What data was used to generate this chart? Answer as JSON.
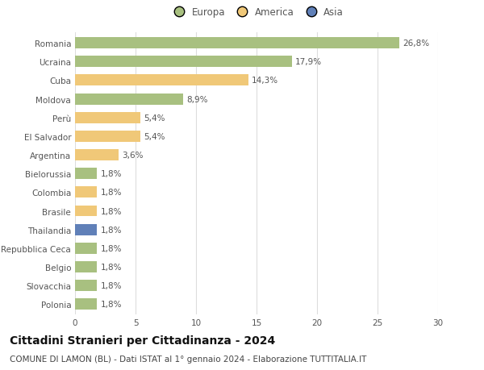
{
  "title": "Cittadini Stranieri per Cittadinanza - 2024",
  "subtitle": "COMUNE DI LAMON (BL) - Dati ISTAT al 1° gennaio 2024 - Elaborazione TUTTITALIA.IT",
  "legend_labels": [
    "Europa",
    "America",
    "Asia"
  ],
  "legend_colors": [
    "#a8c080",
    "#f0c878",
    "#6080b8"
  ],
  "categories": [
    "Romania",
    "Ucraina",
    "Cuba",
    "Moldova",
    "Perù",
    "El Salvador",
    "Argentina",
    "Bielorussia",
    "Colombia",
    "Brasile",
    "Thailandia",
    "Repubblica Ceca",
    "Belgio",
    "Slovacchia",
    "Polonia"
  ],
  "values": [
    26.8,
    17.9,
    14.3,
    8.9,
    5.4,
    5.4,
    3.6,
    1.8,
    1.8,
    1.8,
    1.8,
    1.8,
    1.8,
    1.8,
    1.8
  ],
  "bar_colors": [
    "#a8c080",
    "#a8c080",
    "#f0c878",
    "#a8c080",
    "#f0c878",
    "#f0c878",
    "#f0c878",
    "#a8c080",
    "#f0c878",
    "#f0c878",
    "#6080b8",
    "#a8c080",
    "#a8c080",
    "#a8c080",
    "#a8c080"
  ],
  "labels": [
    "26,8%",
    "17,9%",
    "14,3%",
    "8,9%",
    "5,4%",
    "5,4%",
    "3,6%",
    "1,8%",
    "1,8%",
    "1,8%",
    "1,8%",
    "1,8%",
    "1,8%",
    "1,8%",
    "1,8%"
  ],
  "xlim": [
    0,
    30
  ],
  "xticks": [
    0,
    5,
    10,
    15,
    20,
    25,
    30
  ],
  "background_color": "#ffffff",
  "grid_color": "#dddddd",
  "bar_height": 0.6,
  "title_fontsize": 10,
  "subtitle_fontsize": 7.5,
  "label_fontsize": 7.5,
  "tick_fontsize": 7.5,
  "legend_fontsize": 8.5
}
